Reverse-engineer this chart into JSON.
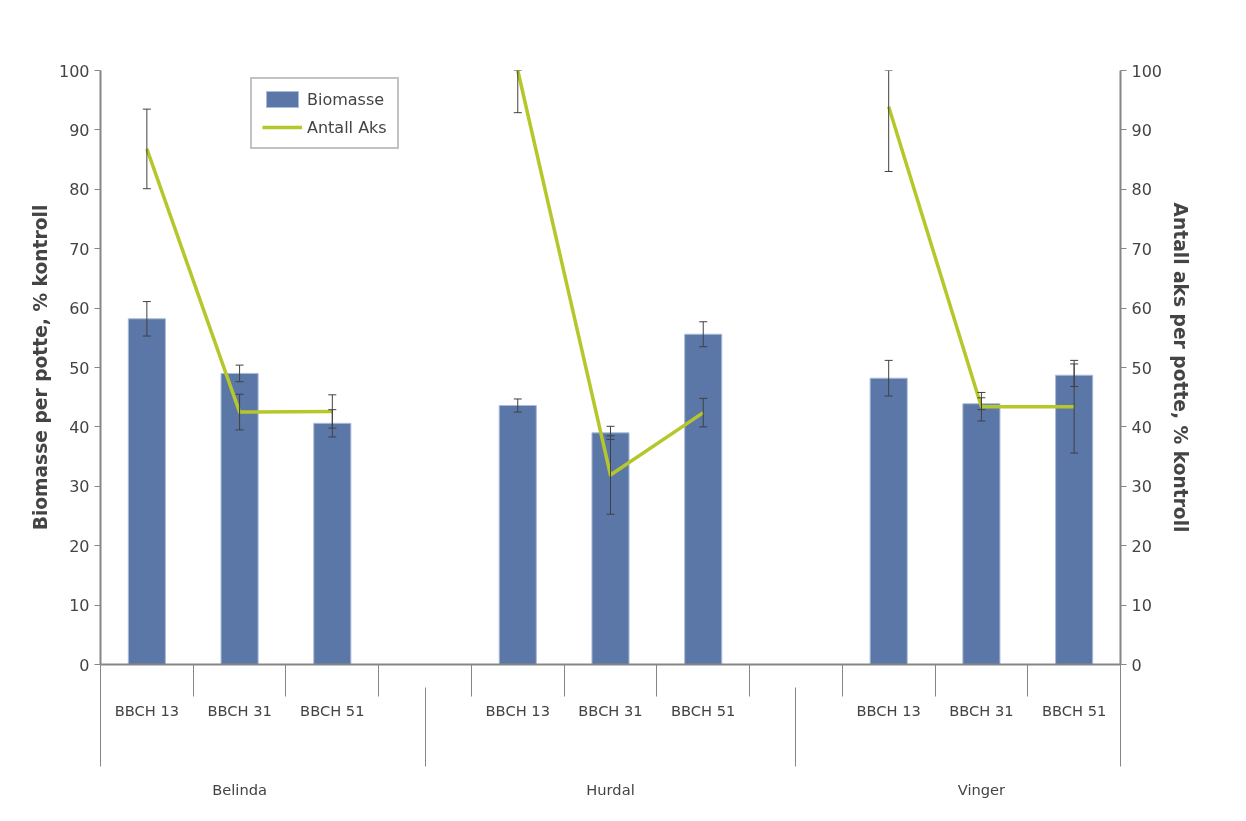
{
  "chart_data": {
    "type": "bar",
    "categories": [
      "BBCH 13",
      "BBCH 31",
      "BBCH 51",
      null,
      "BBCH 13",
      "BBCH 31",
      "BBCH 51",
      null,
      "BBCH 13",
      "BBCH 31",
      "BBCH 51"
    ],
    "series": [
      {
        "name": "Biomasse",
        "color": "#5b77a7",
        "values": [
          58.2,
          49.0,
          40.6,
          null,
          43.6,
          39.0,
          55.6,
          null,
          48.2,
          43.9,
          48.7
        ],
        "errors": [
          2.9,
          1.4,
          2.3,
          null,
          1.1,
          1.1,
          2.1,
          null,
          3.0,
          1.0,
          1.9
        ]
      },
      {
        "name": "Antall Aks",
        "type": "line",
        "axis": "y2",
        "color": "#b5c72a",
        "values": [
          86.8,
          42.5,
          42.6,
          null,
          100,
          31.9,
          42.4,
          null,
          93.9,
          43.4,
          43.4
        ],
        "errors": [
          6.7,
          3.0,
          2.8,
          null,
          [
            92.9,
            100
          ],
          6.6,
          2.4,
          null,
          [
            83.0,
            100
          ],
          2.4,
          7.8
        ]
      }
    ],
    "ylabel": "Biomasse per potte, % kontroll",
    "y2label": "Antall aks per potte, % kontroll",
    "ylim": [
      0,
      100
    ],
    "yticks": [
      0,
      10,
      20,
      30,
      40,
      50,
      60,
      70,
      80,
      90,
      100
    ],
    "y2lim": [
      0,
      100
    ],
    "y2ticks": [
      0,
      10,
      20,
      30,
      40,
      50,
      60,
      70,
      80,
      90,
      100
    ],
    "annotations": [
      "Belinda",
      "Hurdal",
      "Vinger"
    ],
    "legend": "top left",
    "grid": false
  }
}
